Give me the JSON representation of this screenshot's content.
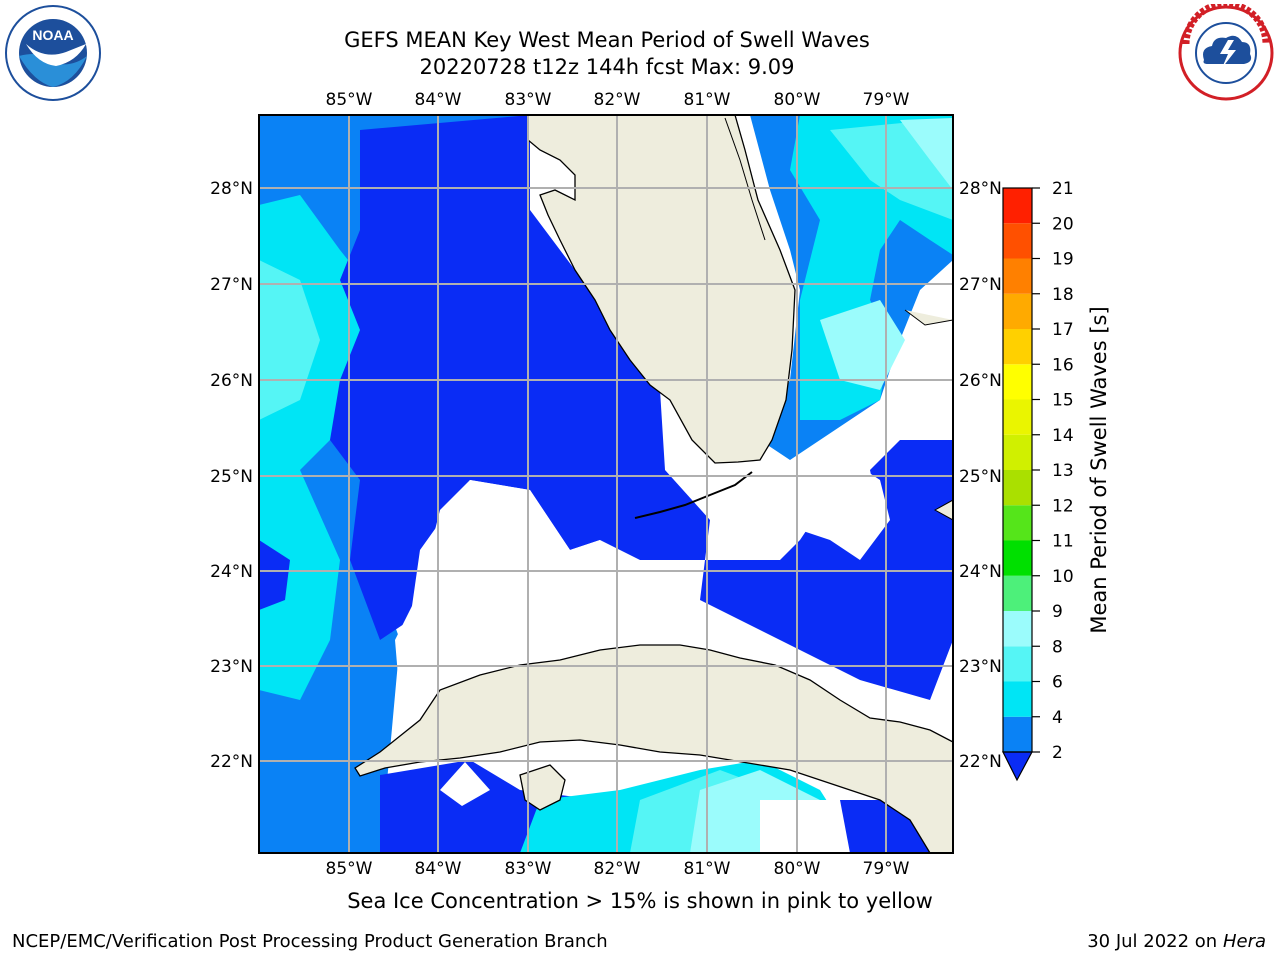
{
  "header": {
    "title_line1": "GEFS MEAN Key West Mean Period of Swell Waves",
    "title_line2": "20220728 t12z 144h fcst   Max: 9.09"
  },
  "logos": {
    "noaa": {
      "text": "NOAA",
      "ring_text": "NATIONAL OCEANIC AND ATMOSPHERIC ADMINISTRATION · U.S. DEPARTMENT OF COMMERCE"
    },
    "nws": {
      "ring_text": "NATIONAL WEATHER SERVICE"
    }
  },
  "map": {
    "lon_labels": [
      "85°W",
      "84°W",
      "83°W",
      "82°W",
      "81°W",
      "80°W",
      "79°W"
    ],
    "lat_labels": [
      "28°N",
      "27°N",
      "26°N",
      "25°N",
      "24°N",
      "23°N",
      "22°N"
    ],
    "extent": {
      "lon_min": -86.0,
      "lon_max": -78.25,
      "lat_min": 21.0,
      "lat_max": 28.75
    },
    "land_color": "#eeeddd",
    "grid_color": "#b0b0b0"
  },
  "colorbar": {
    "label": "Mean Period of Swell Waves [s]",
    "ticks": [
      "2",
      "4",
      "6",
      "8",
      "9",
      "10",
      "11",
      "12",
      "13",
      "14",
      "15",
      "16",
      "17",
      "18",
      "19",
      "20",
      "21"
    ],
    "colors": [
      "#0a2cf5",
      "#0a82f5",
      "#00e5f5",
      "#55f5f5",
      "#9bfcfc",
      "#4df07a",
      "#00e000",
      "#55e51a",
      "#aae000",
      "#d0f000",
      "#eaf500",
      "#ffff00",
      "#ffd000",
      "#ffaa00",
      "#ff8000",
      "#ff5000",
      "#ff2000",
      "#ff0000"
    ],
    "extend": "min"
  },
  "subtitle": "Sea Ice Concentration > 15% is shown in pink to yellow",
  "footer": {
    "left": "NCEP/EMC/Verification Post Processing Product Generation Branch",
    "right_date": "30 Jul 2022 on",
    "right_host": "Hera"
  }
}
